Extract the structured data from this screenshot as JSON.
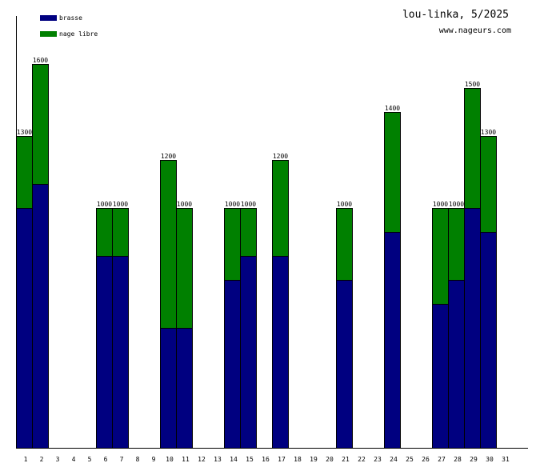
{
  "chart_data": {
    "type": "bar",
    "stacked": true,
    "title": "lou-linka, 5/2025",
    "subtitle": "www.nageurs.com",
    "xlabel": "",
    "ylabel": "",
    "ylim": [
      0,
      1800
    ],
    "legend_position": "top-left",
    "categories": [
      "1",
      "2",
      "3",
      "4",
      "5",
      "6",
      "7",
      "8",
      "9",
      "10",
      "11",
      "12",
      "13",
      "14",
      "15",
      "16",
      "17",
      "18",
      "19",
      "20",
      "21",
      "22",
      "23",
      "24",
      "25",
      "26",
      "27",
      "28",
      "29",
      "30",
      "31"
    ],
    "series": [
      {
        "name": "brasse",
        "color": "#000080",
        "values": [
          1000,
          1100,
          0,
          0,
          0,
          800,
          800,
          0,
          0,
          500,
          500,
          0,
          0,
          700,
          800,
          0,
          800,
          0,
          0,
          0,
          700,
          0,
          0,
          900,
          0,
          0,
          600,
          700,
          1000,
          900,
          0
        ]
      },
      {
        "name": "nage libre",
        "color": "#008000",
        "values": [
          300,
          500,
          0,
          0,
          0,
          200,
          200,
          0,
          0,
          700,
          500,
          0,
          0,
          300,
          200,
          0,
          400,
          0,
          0,
          0,
          300,
          0,
          0,
          500,
          0,
          0,
          400,
          300,
          500,
          400,
          0
        ]
      }
    ],
    "totals": [
      1300,
      1600,
      0,
      0,
      0,
      1000,
      1000,
      0,
      0,
      1200,
      1000,
      0,
      0,
      1000,
      1000,
      0,
      1200,
      0,
      0,
      0,
      1000,
      0,
      0,
      1400,
      0,
      0,
      1000,
      1000,
      1500,
      1300,
      0
    ]
  }
}
